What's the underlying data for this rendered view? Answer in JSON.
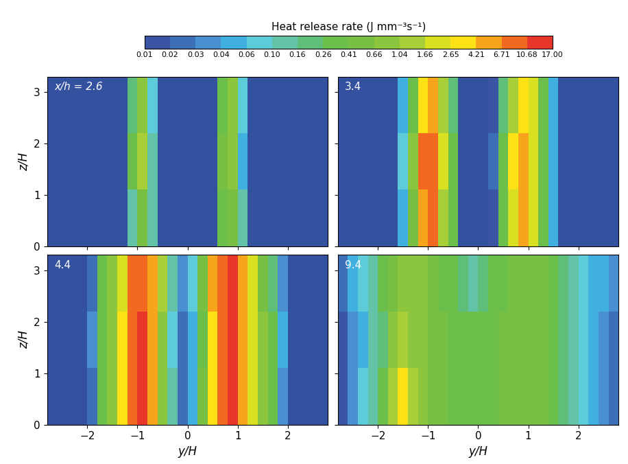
{
  "chart_data": {
    "type": "heatmap",
    "xlabel": "y/H",
    "ylabel": "z/H",
    "xlim": [
      -2.8,
      2.8
    ],
    "xticks": [
      {
        "value": -2,
        "label": "−2"
      },
      {
        "value": -1,
        "label": "−1"
      },
      0,
      1,
      2
    ],
    "ylim": [
      0,
      3.3
    ],
    "yticks": [
      0,
      1,
      2,
      3
    ],
    "colorbar": {
      "label": "Heat release rate (J mm⁻³s⁻¹)",
      "range": [
        0.01,
        17.0
      ],
      "ticks": [
        0.01,
        0.02,
        0.03,
        0.04,
        0.06,
        {
          "value": 0.1,
          "label": "0.10"
        },
        0.16,
        0.26,
        0.41,
        0.66,
        1.04,
        1.66,
        2.65,
        4.21,
        6.71,
        10.68,
        {
          "value": 17.0,
          "label": "17.00"
        }
      ],
      "colors": [
        "#3a55a4",
        "#3d6fb6",
        "#4a8fd0",
        "#3fb0e0",
        "#5ecbd8",
        "#63c3a8",
        "#5fbf7a",
        "#6cbf4a",
        "#78c043",
        "#8cc63f",
        "#a8cf3a",
        "#d9e021",
        "#fbe116",
        "#f7a51c",
        "#f26a21",
        "#e8372a"
      ],
      "under_color": "#33519f"
    },
    "y_edges": [
      -2.8,
      -2.6,
      -2.4,
      -2.2,
      -2.0,
      -1.8,
      -1.6,
      -1.4,
      -1.2,
      -1.0,
      -0.8,
      -0.6,
      -0.4,
      -0.2,
      0.0,
      0.2,
      0.4,
      0.6,
      0.8,
      1.0,
      1.2,
      1.4,
      1.6,
      1.8,
      2.0,
      2.2,
      2.4,
      2.6,
      2.8
    ],
    "z_edges": [
      0,
      1.1,
      2.2,
      3.3
    ],
    "panels": [
      {
        "title": "x/h = 2.6",
        "cells": [
          [
            0.005,
            0.005,
            0.005,
            0.005,
            0.005,
            0.005,
            0.005,
            0.005,
            0.15,
            0.6,
            0.1,
            0.005,
            0.005,
            0.005,
            0.005,
            0.005,
            0.005,
            0.3,
            0.5,
            0.1,
            0.005,
            0.005,
            0.005,
            0.005,
            0.005,
            0.005,
            0.005,
            0.005
          ],
          [
            0.005,
            0.005,
            0.005,
            0.005,
            0.005,
            0.005,
            0.005,
            0.005,
            0.3,
            1.2,
            0.1,
            0.005,
            0.005,
            0.005,
            0.005,
            0.005,
            0.005,
            0.5,
            0.9,
            0.05,
            0.005,
            0.005,
            0.005,
            0.005,
            0.005,
            0.005,
            0.005,
            0.005
          ],
          [
            0.005,
            0.005,
            0.005,
            0.005,
            0.005,
            0.005,
            0.005,
            0.005,
            0.2,
            0.7,
            0.06,
            0.005,
            0.005,
            0.005,
            0.005,
            0.005,
            0.005,
            0.4,
            0.7,
            0.06,
            0.005,
            0.005,
            0.005,
            0.005,
            0.005,
            0.005,
            0.005,
            0.005
          ]
        ]
      },
      {
        "title": "3.4",
        "cells": [
          [
            0.005,
            0.005,
            0.005,
            0.005,
            0.005,
            0.005,
            0.05,
            0.5,
            5,
            8,
            1.5,
            0.3,
            0.005,
            0.005,
            0.005,
            0.01,
            0.3,
            2,
            5,
            2.5,
            0.4,
            0.05,
            0.005,
            0.005,
            0.005,
            0.005,
            0.005,
            0.005
          ],
          [
            0.005,
            0.005,
            0.005,
            0.005,
            0.005,
            0.005,
            0.06,
            0.8,
            7,
            9,
            2,
            0.3,
            0.005,
            0.005,
            0.005,
            0.02,
            0.4,
            3,
            6,
            2,
            0.3,
            0.04,
            0.005,
            0.005,
            0.005,
            0.005,
            0.005,
            0.005
          ],
          [
            0.005,
            0.005,
            0.005,
            0.005,
            0.005,
            0.005,
            0.04,
            0.4,
            3,
            6,
            1.2,
            0.2,
            0.005,
            0.005,
            0.005,
            0.01,
            0.2,
            1.5,
            4,
            2,
            0.3,
            0.05,
            0.005,
            0.005,
            0.005,
            0.005,
            0.005,
            0.005
          ]
        ]
      },
      {
        "title": "4.4",
        "cells": [
          [
            0.005,
            0.005,
            0.005,
            0.005,
            0.02,
            0.3,
            0.8,
            3,
            8,
            11,
            6,
            1,
            0.1,
            0.02,
            0.05,
            0.5,
            4,
            9,
            11,
            5,
            2,
            0.7,
            0.3,
            0.03,
            0.005,
            0.005,
            0.005,
            0.005
          ],
          [
            0.005,
            0.005,
            0.005,
            0.005,
            0.03,
            0.4,
            1,
            4,
            9,
            12,
            5,
            0.8,
            0.08,
            0.02,
            0.04,
            0.4,
            3,
            8,
            12,
            6,
            2.5,
            0.8,
            0.3,
            0.04,
            0.005,
            0.005,
            0.005,
            0.005
          ],
          [
            0.005,
            0.005,
            0.005,
            0.005,
            0.02,
            0.3,
            0.7,
            2.5,
            7,
            10,
            5,
            1.2,
            0.1,
            0.03,
            0.06,
            0.6,
            5,
            10,
            12,
            5,
            2,
            0.6,
            0.2,
            0.03,
            0.005,
            0.005,
            0.005,
            0.005
          ]
        ]
      },
      {
        "title": "9.4",
        "cells": [
          [
            0.01,
            0.03,
            0.06,
            0.1,
            0.3,
            1.2,
            3,
            1.5,
            0.8,
            0.6,
            0.5,
            0.4,
            0.3,
            0.3,
            0.3,
            0.4,
            0.5,
            0.5,
            0.5,
            0.6,
            0.5,
            0.4,
            0.2,
            0.1,
            0.08,
            0.05,
            0.03,
            0.02
          ],
          [
            0.01,
            0.03,
            0.05,
            0.1,
            0.25,
            0.8,
            1.5,
            1.0,
            0.7,
            0.6,
            0.5,
            0.4,
            0.35,
            0.3,
            0.3,
            0.35,
            0.45,
            0.5,
            0.55,
            0.6,
            0.5,
            0.35,
            0.2,
            0.12,
            0.08,
            0.05,
            0.03,
            0.02
          ],
          [
            0.02,
            0.04,
            0.06,
            0.12,
            0.3,
            0.6,
            1.0,
            0.9,
            0.7,
            0.5,
            0.4,
            0.3,
            0.2,
            0.15,
            0.2,
            0.3,
            0.4,
            0.5,
            0.5,
            0.5,
            0.45,
            0.3,
            0.2,
            0.1,
            0.07,
            0.05,
            0.04,
            0.03
          ]
        ]
      }
    ]
  }
}
